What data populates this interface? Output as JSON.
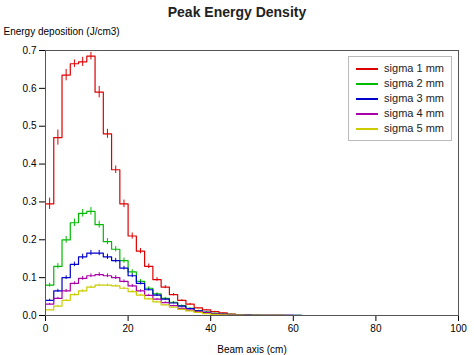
{
  "chart_data": {
    "type": "step",
    "title": "Peak Energy Density",
    "xlabel": "Beam axis (cm)",
    "ylabel": "Energy deposition (J/cm3)",
    "xlim": [
      0,
      100
    ],
    "ylim": [
      0,
      0.7
    ],
    "xticks": [
      0,
      20,
      40,
      60,
      80,
      100
    ],
    "yticks": [
      {
        "value": 0,
        "label": "0.0"
      },
      0.1,
      0.2,
      0.3,
      0.4,
      0.5,
      0.6,
      0.7
    ],
    "grid": false,
    "legend": "upper right",
    "bins": [
      0,
      2,
      4,
      6,
      8,
      10,
      12,
      14,
      16,
      18,
      20,
      22,
      24,
      26,
      28,
      30,
      32,
      34,
      36,
      38,
      40,
      42,
      44,
      46,
      48,
      50,
      52,
      54,
      56,
      58,
      60,
      62,
      64,
      66,
      68,
      70,
      72,
      74,
      76,
      78,
      80,
      82,
      84,
      86,
      88,
      90,
      92,
      94,
      96,
      98,
      100
    ],
    "series": [
      {
        "name": "sigma 1 mm",
        "color": "#dd0000",
        "values": [
          0.295,
          0.47,
          0.635,
          0.665,
          0.67,
          0.685,
          0.59,
          0.48,
          0.385,
          0.295,
          0.21,
          0.17,
          0.13,
          0.095,
          0.075,
          0.055,
          0.04,
          0.03,
          0.02,
          0.015,
          0.01,
          0.007,
          0.004,
          0.002,
          0.001,
          0.0005,
          0.0003,
          0.0002,
          0.0001,
          5e-05,
          3e-05,
          2e-05,
          1e-05,
          8e-06,
          5e-06,
          3e-06,
          2e-06,
          1e-06,
          8e-07,
          5e-07,
          3e-07,
          2e-07,
          1e-07,
          8e-08,
          5e-08,
          3e-08,
          2e-08,
          1e-08,
          8e-09,
          5e-09
        ],
        "errors": [
          0.015,
          0.02,
          0.015,
          0.01,
          0.012,
          0.01,
          0.015,
          0.012,
          0.01,
          0.01,
          0.008,
          0.007,
          0.006,
          0.005,
          0.004,
          0.003,
          0.002,
          0.002,
          0.001,
          0.001,
          0.001,
          0.0005,
          0.0003,
          0.0002,
          0.0001,
          5e-05,
          3e-05,
          2e-05,
          1e-05,
          5e-06,
          3e-06,
          2e-06,
          1e-06,
          8e-07,
          5e-07,
          3e-07,
          2e-07,
          1e-07,
          8e-08,
          5e-08,
          3e-08,
          2e-08,
          1e-08,
          8e-09,
          5e-09,
          3e-09,
          2e-09,
          1e-09,
          8e-10,
          5e-10
        ]
      },
      {
        "name": "sigma 2 mm",
        "color": "#00bb00",
        "values": [
          0.08,
          0.13,
          0.2,
          0.245,
          0.27,
          0.275,
          0.24,
          0.195,
          0.175,
          0.145,
          0.115,
          0.09,
          0.072,
          0.057,
          0.045,
          0.035,
          0.026,
          0.019,
          0.013,
          0.009,
          0.006,
          0.004,
          0.003,
          0.002,
          0.001,
          0.0008,
          0.0005,
          0.0003,
          0.0002,
          0.0001,
          8e-05,
          5e-05,
          3e-05,
          2e-05,
          1e-05,
          8e-06,
          5e-06,
          3e-06,
          2e-06,
          1e-06,
          8e-07,
          5e-07,
          3e-07,
          2e-07,
          1e-07,
          8e-08,
          5e-08,
          3e-08,
          2e-08,
          1e-08
        ],
        "errors": [
          0.005,
          0.007,
          0.009,
          0.01,
          0.01,
          0.01,
          0.009,
          0.008,
          0.007,
          0.007,
          0.006,
          0.005,
          0.004,
          0.003,
          0.003,
          0.002,
          0.002,
          0.001,
          0.001,
          0.001,
          0.0005,
          0.0003,
          0.0002,
          0.0001,
          5e-05,
          3e-05,
          2e-05,
          1e-05,
          8e-06,
          5e-06,
          3e-06,
          2e-06,
          1e-06,
          8e-07,
          5e-07,
          3e-07,
          2e-07,
          1e-07,
          8e-08,
          5e-08,
          3e-08,
          2e-08,
          1e-08,
          8e-09,
          5e-09,
          3e-09,
          2e-09,
          1e-09,
          8e-10,
          5e-10
        ]
      },
      {
        "name": "sigma 3 mm",
        "color": "#0000cc",
        "values": [
          0.04,
          0.065,
          0.1,
          0.135,
          0.155,
          0.165,
          0.165,
          0.155,
          0.145,
          0.125,
          0.105,
          0.085,
          0.068,
          0.054,
          0.043,
          0.033,
          0.025,
          0.018,
          0.012,
          0.008,
          0.005,
          0.003,
          0.002,
          0.001,
          0.001,
          0.0006,
          0.0004,
          0.0003,
          0.0002,
          0.0001,
          7e-05,
          5e-05,
          3e-05,
          2e-05,
          1e-05,
          7e-06,
          4e-06,
          3e-06,
          2e-06,
          1e-06,
          7e-07,
          4e-07,
          2e-07,
          2e-07,
          1e-07,
          7e-08,
          4e-08,
          3e-08,
          2e-08,
          1e-08
        ],
        "errors": [
          0.003,
          0.004,
          0.005,
          0.006,
          0.007,
          0.007,
          0.007,
          0.007,
          0.006,
          0.005,
          0.005,
          0.004,
          0.003,
          0.003,
          0.002,
          0.002,
          0.001,
          0.001,
          0.001,
          0.0005,
          0.0003,
          0.0002,
          0.0001,
          5e-05,
          3e-05,
          2e-05,
          1e-05,
          8e-06,
          5e-06,
          3e-06,
          2e-06,
          1e-06,
          8e-07,
          5e-07,
          3e-07,
          2e-07,
          1e-07,
          8e-08,
          5e-08,
          3e-08,
          2e-08,
          1e-08,
          8e-09,
          5e-09,
          3e-09,
          2e-09,
          1e-09,
          8e-10,
          5e-10,
          3e-10
        ]
      },
      {
        "name": "sigma 4 mm",
        "color": "#aa00aa",
        "values": [
          0.03,
          0.045,
          0.065,
          0.085,
          0.098,
          0.105,
          0.108,
          0.105,
          0.1,
          0.09,
          0.078,
          0.065,
          0.053,
          0.043,
          0.034,
          0.026,
          0.019,
          0.014,
          0.01,
          0.007,
          0.004,
          0.003,
          0.002,
          0.001,
          0.0005,
          0.0004,
          0.0003,
          0.0002,
          0.0001,
          8e-05,
          5e-05,
          4e-05,
          3e-05,
          2e-05,
          1e-05,
          7e-06,
          4e-06,
          3e-06,
          2e-06,
          1e-06,
          7e-07,
          4e-07,
          2e-07,
          2e-07,
          1e-07,
          7e-08,
          4e-08,
          3e-08,
          2e-08,
          1e-08
        ],
        "errors": [
          0.002,
          0.003,
          0.004,
          0.004,
          0.005,
          0.005,
          0.005,
          0.005,
          0.005,
          0.004,
          0.004,
          0.003,
          0.003,
          0.002,
          0.002,
          0.001,
          0.001,
          0.001,
          0.0005,
          0.0003,
          0.0002,
          0.0001,
          5e-05,
          3e-05,
          2e-05,
          1e-05,
          8e-06,
          5e-06,
          3e-06,
          2e-06,
          1e-06,
          8e-07,
          5e-07,
          3e-07,
          2e-07,
          1e-07,
          8e-08,
          5e-08,
          3e-08,
          2e-08,
          1e-08,
          8e-09,
          5e-09,
          3e-09,
          2e-09,
          1e-09,
          8e-10,
          5e-10,
          3e-10,
          2e-10
        ]
      },
      {
        "name": "sigma 5 mm",
        "color": "#cccc00",
        "values": [
          0.015,
          0.025,
          0.04,
          0.055,
          0.065,
          0.075,
          0.08,
          0.08,
          0.078,
          0.072,
          0.063,
          0.054,
          0.044,
          0.036,
          0.028,
          0.022,
          0.016,
          0.012,
          0.008,
          0.005,
          0.003,
          0.002,
          0.001,
          0.0008,
          0.0004,
          0.0003,
          0.0002,
          0.0001,
          8e-05,
          5e-05,
          4e-05,
          3e-05,
          2e-05,
          1e-05,
          7e-06,
          5e-06,
          3e-06,
          2e-06,
          1e-06,
          8e-07,
          5e-07,
          3e-07,
          2e-07,
          1e-07,
          8e-08,
          5e-08,
          3e-08,
          2e-08,
          1e-08,
          8e-09
        ],
        "errors": [
          0.001,
          0.002,
          0.002,
          0.003,
          0.003,
          0.003,
          0.003,
          0.003,
          0.003,
          0.003,
          0.003,
          0.002,
          0.002,
          0.002,
          0.001,
          0.001,
          0.001,
          0.0008,
          0.0005,
          0.0003,
          0.0002,
          0.0001,
          5e-05,
          3e-05,
          2e-05,
          1e-05,
          8e-06,
          5e-06,
          3e-06,
          2e-06,
          1e-06,
          8e-07,
          5e-07,
          3e-07,
          2e-07,
          1e-07,
          8e-08,
          5e-08,
          3e-08,
          2e-08,
          1e-08,
          8e-09,
          5e-09,
          3e-09,
          2e-09,
          1e-09,
          8e-10,
          5e-10,
          3e-10,
          2e-10
        ]
      }
    ]
  }
}
